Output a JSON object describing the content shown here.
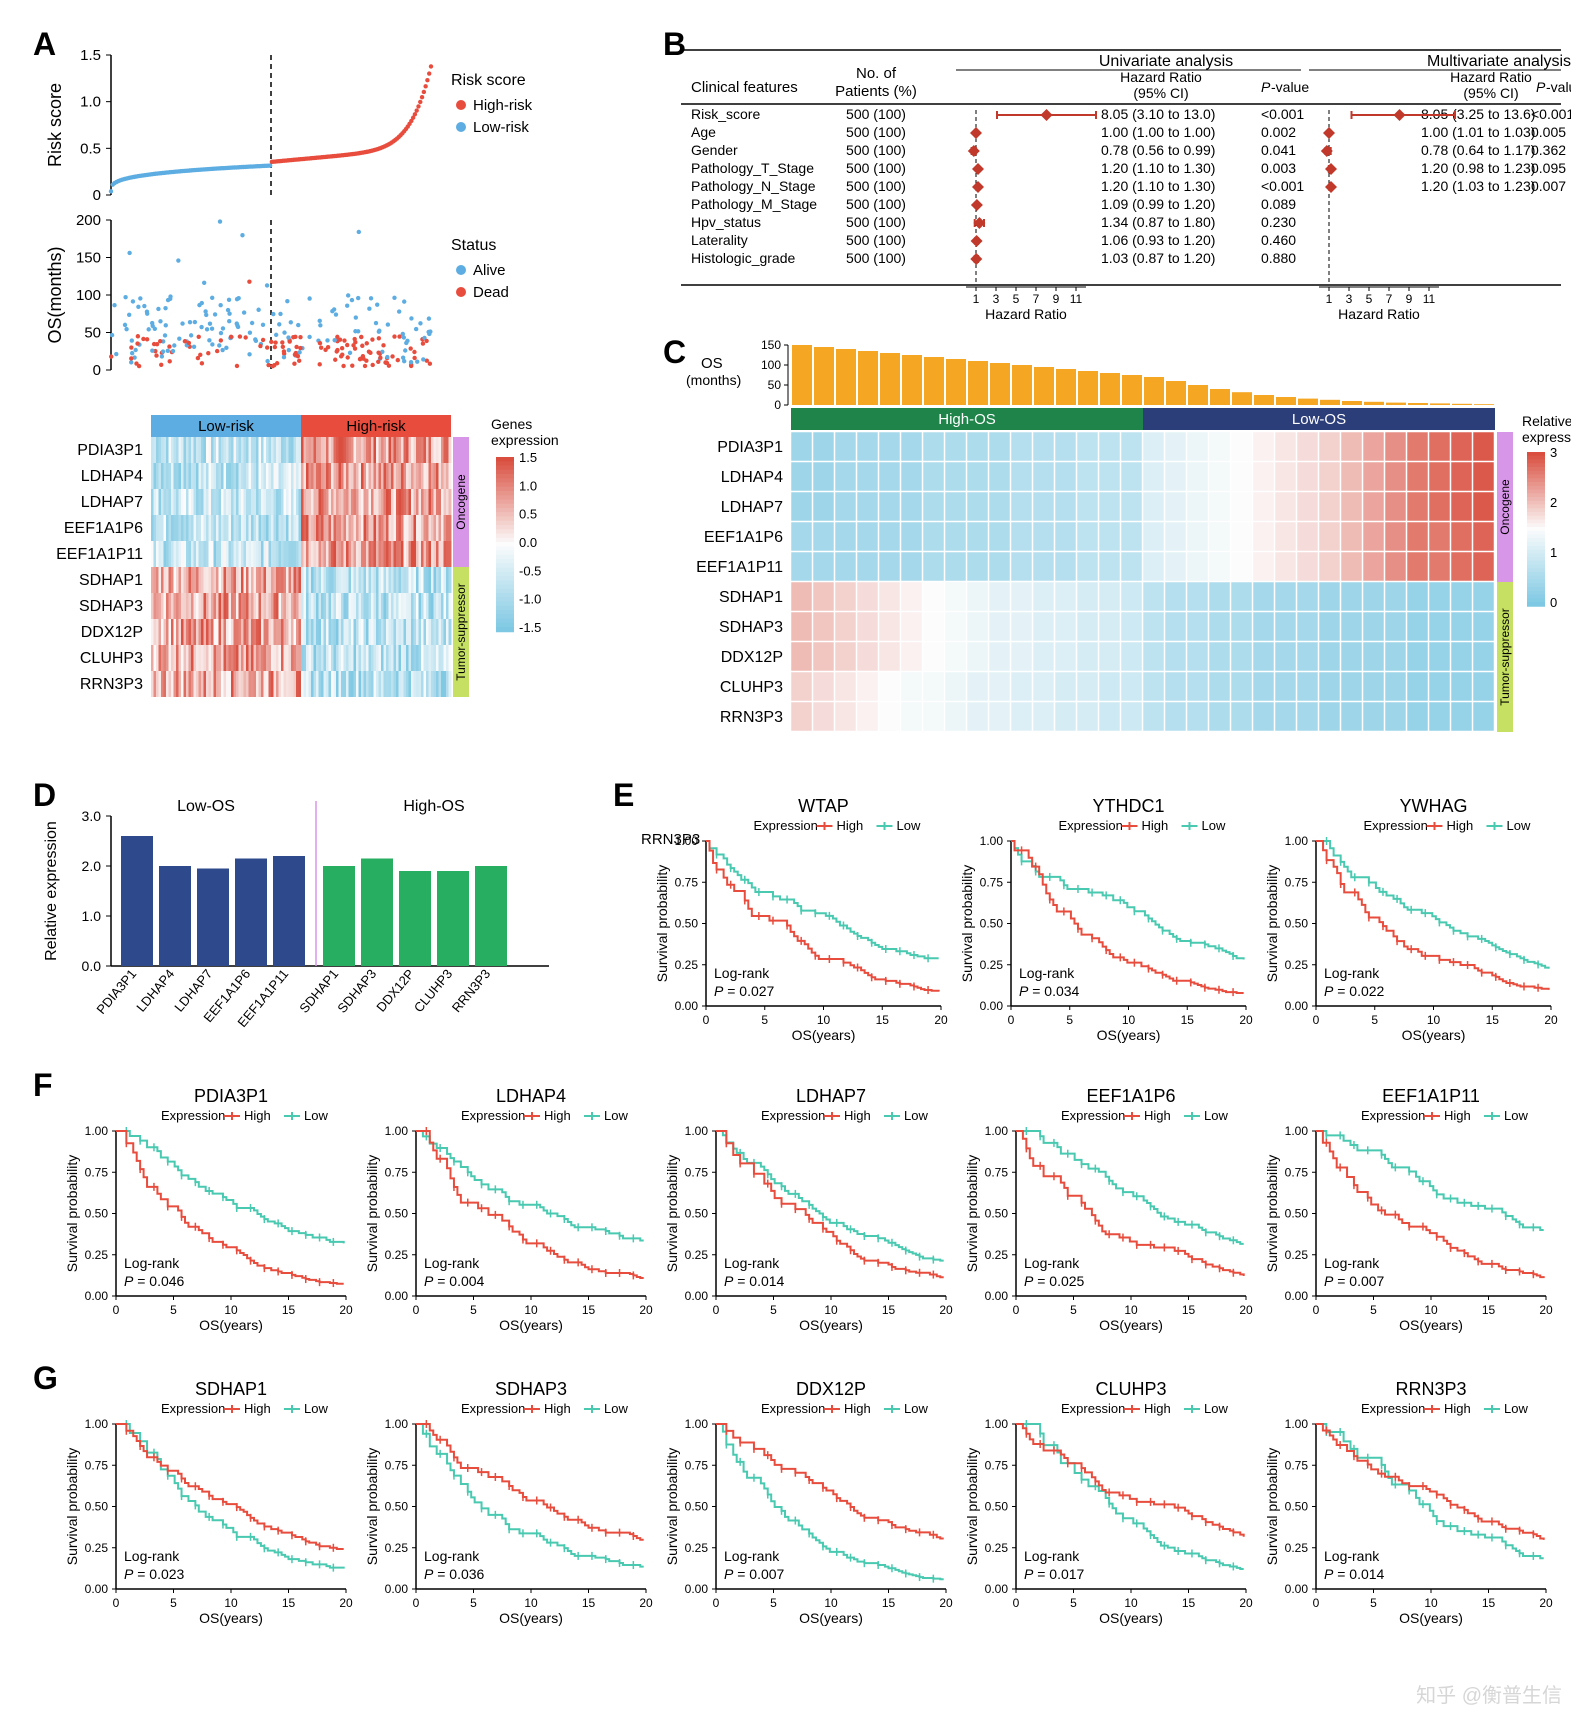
{
  "colors": {
    "red": "#e84c3d",
    "blue": "#5dade2",
    "teal": "#48c9b0",
    "darkblue": "#2e4a8c",
    "green": "#27ae60",
    "darkgreen": "#1e8449",
    "navy": "#2c3e7a",
    "violet": "#d896e8",
    "lime": "#c5e063",
    "orange": "#f5a623",
    "heatRed": "#d94e3f",
    "heatBlue": "#7ec8e3",
    "heatWhite": "#fdfdfd",
    "forestRed": "#c0392b",
    "gridGray": "#cccccc"
  },
  "panelA": {
    "riskScore": {
      "ylabel": "Risk score",
      "yticks": [
        0,
        0.5,
        1.0,
        1.5
      ],
      "legend_title": "Risk score",
      "legend": [
        {
          "label": "High-risk",
          "color": "#e84c3d"
        },
        {
          "label": "Low-risk",
          "color": "#5dade2"
        }
      ]
    },
    "os": {
      "ylabel": "OS(months)",
      "yticks": [
        0,
        50,
        100,
        150,
        200
      ],
      "legend_title": "Status",
      "legend": [
        {
          "label": "Alive",
          "color": "#5dade2"
        },
        {
          "label": "Dead",
          "color": "#e84c3d"
        }
      ]
    },
    "heatmap": {
      "col_groups": [
        {
          "label": "Low-risk",
          "color": "#5dade2"
        },
        {
          "label": "High-risk",
          "color": "#e84c3d"
        }
      ],
      "row_groups": [
        {
          "label": "Oncogene",
          "color": "#d896e8",
          "rows": 5
        },
        {
          "label": "Tumor-suppressor",
          "color": "#c5e063",
          "rows": 5
        }
      ],
      "genes": [
        "PDIA3P1",
        "LDHAP4",
        "LDHAP7",
        "EEF1A1P6",
        "EEF1A1P11",
        "SDHAP1",
        "SDHAP3",
        "DDX12P",
        "CLUHP3",
        "RRN3P3"
      ],
      "legend_title": "Genes\nexpression",
      "legend_ticks": [
        1.5,
        1.0,
        0.5,
        0,
        -0.5,
        -1.0,
        -1.5
      ]
    }
  },
  "panelB": {
    "headers": {
      "clinical": "Clinical features",
      "patients": "No. of\nPatients (%)",
      "uni": "Univariate analysis",
      "multi": "Multivariate analysis",
      "hr": "Hazard Ratio\n(95% CI)",
      "p": "P-value"
    },
    "axis_label": "Hazard Ratio",
    "axis_ticks": [
      1,
      3,
      5,
      7,
      9,
      11
    ],
    "rows": [
      {
        "feature": "Risk_score",
        "n": "500 (100)",
        "uni_hr": "8.05 (3.10 to 13.0)",
        "uni_p": "<0.001",
        "uni_pt": 8.05,
        "uni_lo": 3.1,
        "uni_hi": 13.0,
        "multi_hr": "8.05 (3.25 to 13.6)",
        "multi_p": "<0.001",
        "multi_pt": 8.05,
        "multi_lo": 3.25,
        "multi_hi": 13.6
      },
      {
        "feature": "Age",
        "n": "500 (100)",
        "uni_hr": "1.00 (1.00 to 1.00)",
        "uni_p": "0.002",
        "uni_pt": 1.0,
        "uni_lo": 1.0,
        "uni_hi": 1.0,
        "multi_hr": "1.00 (1.01 to 1.03)",
        "multi_p": "0.005",
        "multi_pt": 1.0,
        "multi_lo": 1.01,
        "multi_hi": 1.03
      },
      {
        "feature": "Gender",
        "n": "500 (100)",
        "uni_hr": "0.78 (0.56 to 0.99)",
        "uni_p": "0.041",
        "uni_pt": 0.78,
        "uni_lo": 0.56,
        "uni_hi": 0.99,
        "multi_hr": "0.78 (0.64 to 1.17)",
        "multi_p": "0.362",
        "multi_pt": 0.78,
        "multi_lo": 0.64,
        "multi_hi": 1.17
      },
      {
        "feature": "Pathology_T_Stage",
        "n": "500 (100)",
        "uni_hr": "1.20 (1.10 to 1.30)",
        "uni_p": "0.003",
        "uni_pt": 1.2,
        "uni_lo": 1.1,
        "uni_hi": 1.3,
        "multi_hr": "1.20 (0.98 to 1.23)",
        "multi_p": "0.095",
        "multi_pt": 1.2,
        "multi_lo": 0.98,
        "multi_hi": 1.23
      },
      {
        "feature": "Pathology_N_Stage",
        "n": "500 (100)",
        "uni_hr": "1.20 (1.10 to 1.30)",
        "uni_p": "<0.001",
        "uni_pt": 1.2,
        "uni_lo": 1.1,
        "uni_hi": 1.3,
        "multi_hr": "1.20 (1.03 to 1.23)",
        "multi_p": "0.007",
        "multi_pt": 1.2,
        "multi_lo": 1.03,
        "multi_hi": 1.23
      },
      {
        "feature": "Pathology_M_Stage",
        "n": "500 (100)",
        "uni_hr": "1.09 (0.99 to 1.20)",
        "uni_p": "0.089",
        "uni_pt": 1.09,
        "uni_lo": 0.99,
        "uni_hi": 1.2
      },
      {
        "feature": "Hpv_status",
        "n": "500 (100)",
        "uni_hr": "1.34 (0.87 to 1.80)",
        "uni_p": "0.230",
        "uni_pt": 1.34,
        "uni_lo": 0.87,
        "uni_hi": 1.8
      },
      {
        "feature": "Laterality",
        "n": "500 (100)",
        "uni_hr": "1.06 (0.93 to 1.20)",
        "uni_p": "0.460",
        "uni_pt": 1.06,
        "uni_lo": 0.93,
        "uni_hi": 1.2
      },
      {
        "feature": "Histologic_grade",
        "n": "500 (100)",
        "uni_hr": "1.03 (0.87 to 1.20)",
        "uni_p": "0.880",
        "uni_pt": 1.03,
        "uni_lo": 0.87,
        "uni_hi": 1.2
      }
    ]
  },
  "panelC": {
    "os_label": "OS\n(months)",
    "os_ticks": [
      0,
      50,
      100,
      150
    ],
    "os_values": [
      150,
      145,
      140,
      135,
      130,
      125,
      120,
      115,
      110,
      105,
      100,
      95,
      90,
      85,
      80,
      75,
      70,
      60,
      50,
      40,
      32,
      25,
      20,
      16,
      13,
      10,
      8,
      6,
      5,
      4,
      3,
      2
    ],
    "col_groups": [
      {
        "label": "High-OS",
        "color": "#1e8449"
      },
      {
        "label": "Low-OS",
        "color": "#2c3e7a"
      }
    ],
    "row_groups": [
      {
        "label": "Oncogene",
        "color": "#d896e8",
        "rows": 5
      },
      {
        "label": "Tumor-suppressor",
        "color": "#c5e063",
        "rows": 5
      }
    ],
    "genes": [
      "PDIA3P1",
      "LDHAP4",
      "LDHAP7",
      "EEF1A1P6",
      "EEF1A1P11",
      "SDHAP1",
      "SDHAP3",
      "DDX12P",
      "CLUHP3",
      "RRN3P3"
    ],
    "heatmap": [
      [
        0.4,
        0.4,
        0.5,
        0.5,
        0.5,
        0.5,
        0.6,
        0.6,
        0.6,
        0.6,
        0.7,
        0.7,
        0.7,
        0.8,
        0.8,
        0.8,
        1.2,
        1.3,
        1.4,
        1.5,
        1.6,
        1.7,
        1.8,
        1.9,
        2.0,
        2.2,
        2.4,
        2.6,
        2.8,
        2.9,
        3.0,
        3.1
      ],
      [
        0.4,
        0.4,
        0.5,
        0.5,
        0.5,
        0.5,
        0.6,
        0.6,
        0.6,
        0.6,
        0.7,
        0.7,
        0.7,
        0.8,
        0.8,
        0.8,
        1.2,
        1.3,
        1.4,
        1.5,
        1.6,
        1.7,
        1.8,
        1.9,
        2.0,
        2.2,
        2.4,
        2.6,
        2.8,
        2.9,
        3.0,
        3.1
      ],
      [
        0.4,
        0.4,
        0.5,
        0.5,
        0.5,
        0.5,
        0.6,
        0.6,
        0.6,
        0.6,
        0.7,
        0.7,
        0.7,
        0.8,
        0.8,
        0.8,
        1.2,
        1.3,
        1.4,
        1.5,
        1.6,
        1.7,
        1.8,
        1.9,
        2.0,
        2.2,
        2.4,
        2.6,
        2.8,
        2.9,
        3.0,
        3.1
      ],
      [
        0.5,
        0.5,
        0.5,
        0.5,
        0.5,
        0.5,
        0.6,
        0.6,
        0.6,
        0.6,
        0.7,
        0.7,
        0.7,
        0.8,
        0.8,
        0.8,
        1.2,
        1.3,
        1.4,
        1.5,
        1.6,
        1.7,
        1.8,
        1.9,
        2.0,
        2.2,
        2.4,
        2.6,
        2.8,
        2.8,
        2.9,
        3.0
      ],
      [
        0.5,
        0.5,
        0.5,
        0.5,
        0.5,
        0.5,
        0.6,
        0.6,
        0.6,
        0.6,
        0.7,
        0.7,
        0.7,
        0.8,
        0.8,
        0.8,
        1.2,
        1.3,
        1.4,
        1.5,
        1.6,
        1.7,
        1.8,
        1.9,
        2.0,
        2.2,
        2.4,
        2.6,
        2.8,
        2.8,
        2.9,
        3.0
      ],
      [
        2.2,
        2.1,
        2.0,
        1.9,
        1.8,
        1.7,
        1.6,
        1.5,
        1.4,
        1.3,
        1.3,
        1.2,
        1.2,
        1.1,
        1.1,
        1.0,
        0.8,
        0.7,
        0.7,
        0.6,
        0.6,
        0.5,
        0.5,
        0.5,
        0.4,
        0.4,
        0.4,
        0.4,
        0.3,
        0.3,
        0.3,
        0.3
      ],
      [
        2.2,
        2.1,
        2.0,
        1.9,
        1.8,
        1.7,
        1.6,
        1.5,
        1.4,
        1.3,
        1.3,
        1.2,
        1.2,
        1.1,
        1.1,
        1.0,
        0.8,
        0.7,
        0.7,
        0.6,
        0.6,
        0.5,
        0.5,
        0.5,
        0.4,
        0.4,
        0.4,
        0.4,
        0.3,
        0.3,
        0.3,
        0.3
      ],
      [
        2.2,
        2.1,
        2.0,
        1.9,
        1.8,
        1.7,
        1.6,
        1.5,
        1.4,
        1.3,
        1.3,
        1.2,
        1.2,
        1.1,
        1.1,
        1.0,
        0.8,
        0.7,
        0.7,
        0.6,
        0.6,
        0.5,
        0.5,
        0.5,
        0.4,
        0.4,
        0.4,
        0.4,
        0.3,
        0.3,
        0.3,
        0.3
      ],
      [
        2.0,
        1.9,
        1.8,
        1.7,
        1.6,
        1.5,
        1.5,
        1.4,
        1.3,
        1.3,
        1.2,
        1.2,
        1.1,
        1.1,
        1.0,
        1.0,
        0.8,
        0.7,
        0.7,
        0.6,
        0.6,
        0.5,
        0.5,
        0.5,
        0.4,
        0.4,
        0.4,
        0.4,
        0.3,
        0.3,
        0.3,
        0.3
      ],
      [
        2.0,
        1.9,
        1.8,
        1.7,
        1.6,
        1.5,
        1.5,
        1.4,
        1.3,
        1.3,
        1.2,
        1.2,
        1.1,
        1.1,
        1.0,
        1.0,
        0.8,
        0.7,
        0.7,
        0.6,
        0.6,
        0.5,
        0.5,
        0.5,
        0.4,
        0.4,
        0.4,
        0.4,
        0.3,
        0.3,
        0.3,
        0.3
      ]
    ],
    "legend_title": "Relative\nexpression",
    "legend_ticks": [
      3,
      2,
      1,
      0
    ]
  },
  "panelD": {
    "title_left": "Low-OS",
    "title_right": "High-OS",
    "ylabel": "Relative expression",
    "yticks": [
      0.0,
      1.0,
      2.0,
      3.0
    ],
    "gene_note": "RRN3P3",
    "bars_left": {
      "color": "#2e4a8c",
      "labels": [
        "PDIA3P1",
        "LDHAP4",
        "LDHAP7",
        "EEF1A1P6",
        "EEF1A1P11"
      ],
      "values": [
        2.6,
        2.0,
        1.95,
        2.15,
        2.2
      ]
    },
    "bars_right": {
      "color": "#27ae60",
      "labels": [
        "SDHAP1",
        "SDHAP3",
        "DDX12P",
        "CLUHP3",
        "RRN3P3"
      ],
      "values": [
        2.0,
        2.15,
        1.9,
        1.9,
        2.0
      ]
    }
  },
  "km_common": {
    "ylabel": "Survival probability",
    "xlabel": "OS(years)",
    "legend_prefix": "Expression",
    "legend": [
      {
        "label": "High",
        "color": "#e84c3d"
      },
      {
        "label": "Low",
        "color": "#48c9b0"
      }
    ],
    "xticks": [
      0,
      5,
      10,
      15,
      20
    ],
    "yticks": [
      0,
      0.25,
      0.5,
      0.75,
      1.0
    ],
    "logrank_prefix": "Log-rank"
  },
  "panelE": [
    {
      "title": "WTAP",
      "p": "P = 0.027",
      "high_worse": true
    },
    {
      "title": "YTHDC1",
      "p": "P = 0.034",
      "high_worse": true
    },
    {
      "title": "YWHAG",
      "p": "P = 0.022",
      "high_worse": true
    }
  ],
  "panelF": [
    {
      "title": "PDIA3P1",
      "p": "P = 0.046",
      "high_worse": true
    },
    {
      "title": "LDHAP4",
      "p": "P = 0.004",
      "high_worse": true
    },
    {
      "title": "LDHAP7",
      "p": "P = 0.014",
      "high_worse": true
    },
    {
      "title": "EEF1A1P6",
      "p": "P = 0.025",
      "high_worse": true
    },
    {
      "title": "EEF1A1P11",
      "p": "P = 0.007",
      "high_worse": true
    }
  ],
  "panelG": [
    {
      "title": "SDHAP1",
      "p": "P = 0.023",
      "high_worse": false
    },
    {
      "title": "SDHAP3",
      "p": "P = 0.036",
      "high_worse": false
    },
    {
      "title": "DDX12P",
      "p": "P = 0.007",
      "high_worse": false
    },
    {
      "title": "CLUHP3",
      "p": "P = 0.017",
      "high_worse": false
    },
    {
      "title": "RRN3P3",
      "p": "P = 0.014",
      "high_worse": false
    }
  ],
  "watermark": "知乎 @衡普生信"
}
